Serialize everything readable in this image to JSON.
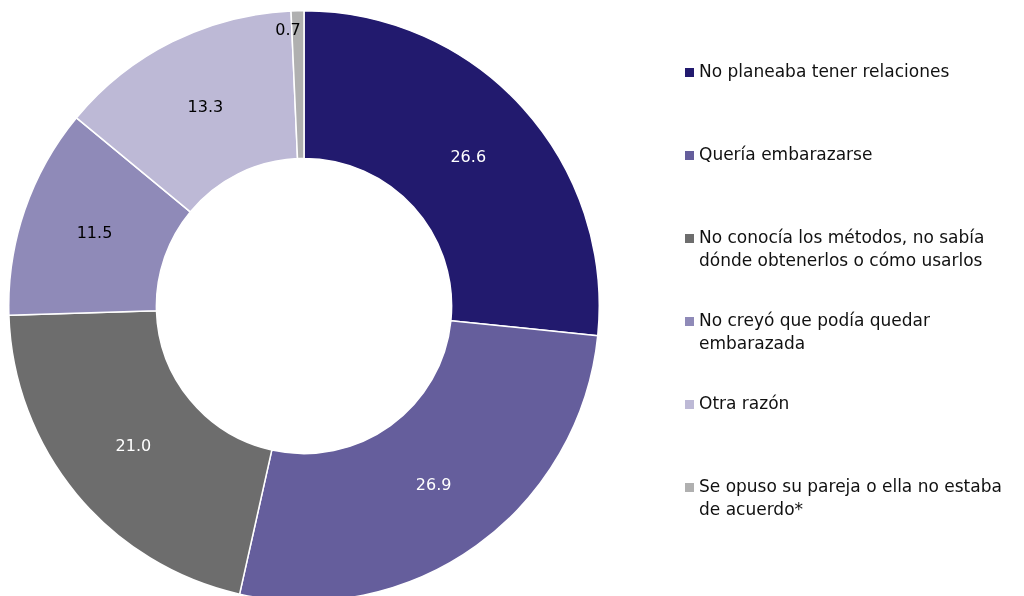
{
  "chart_data": {
    "type": "donut",
    "categories": [
      "No planeaba tener relaciones",
      "Quería embarazarse",
      "No conocía los métodos, no sabía dónde obtenerlos o cómo usarlos",
      "No creyó que podía quedar embarazada",
      "Otra razón",
      "Se opuso su pareja o ella no estaba de acuerdo*"
    ],
    "values": [
      26.6,
      26.9,
      21.0,
      11.5,
      13.3,
      0.7
    ],
    "value_labels": [
      "26.6",
      "26.9",
      "21.0",
      "11.5",
      "13.3",
      "0.7"
    ],
    "colors": [
      "#221a6e",
      "#655e9c",
      "#6d6d6d",
      "#8f8ab8",
      "#bdb9d6",
      "#b0b0b0"
    ],
    "legend": "right"
  }
}
